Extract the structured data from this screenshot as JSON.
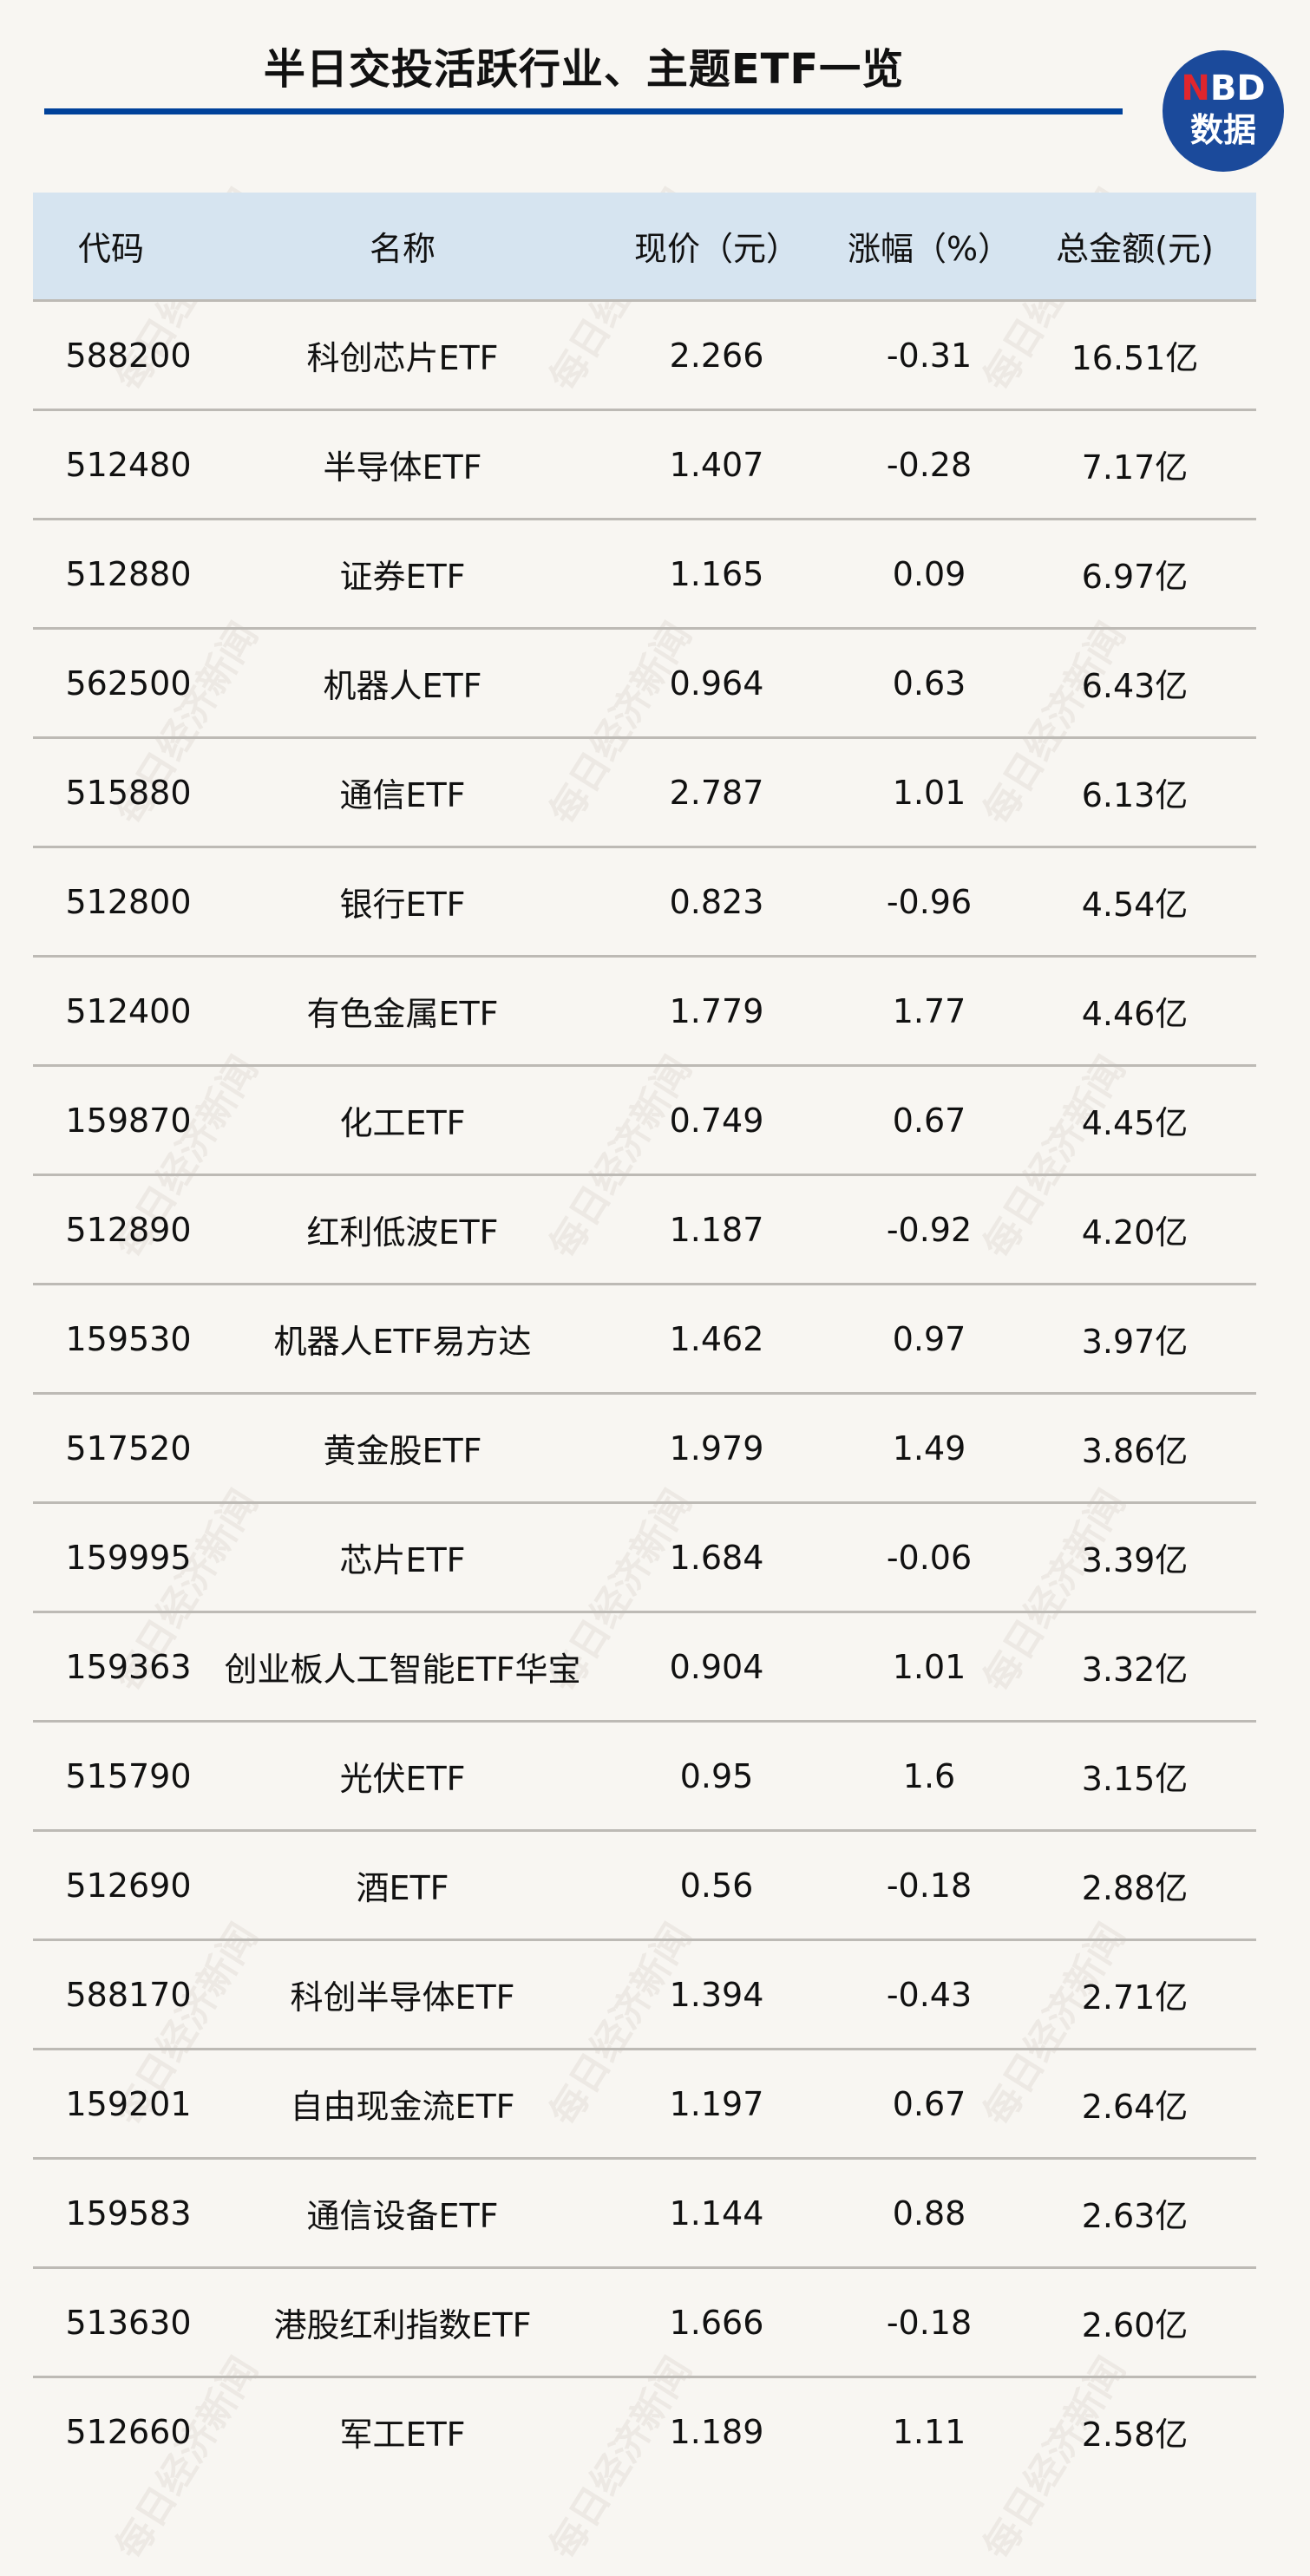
{
  "title": "半日交投活跃行业、主题ETF一览",
  "logo": {
    "line1_n": "N",
    "line1_rest": "BD",
    "line2": "数据"
  },
  "watermark": "每日经济新闻",
  "colors": {
    "accent": "#00419a",
    "header_bg": "#d6e4f0",
    "background": "#f8f6f2"
  },
  "table": {
    "headers": [
      "代码",
      "名称",
      "现价（元）",
      "涨幅（%）",
      "总金额(元)"
    ],
    "rows": [
      [
        "588200",
        "科创芯片ETF",
        "2.266",
        "-0.31",
        "16.51亿"
      ],
      [
        "512480",
        "半导体ETF",
        "1.407",
        "-0.28",
        "7.17亿"
      ],
      [
        "512880",
        "证券ETF",
        "1.165",
        "0.09",
        "6.97亿"
      ],
      [
        "562500",
        "机器人ETF",
        "0.964",
        "0.63",
        "6.43亿"
      ],
      [
        "515880",
        "通信ETF",
        "2.787",
        "1.01",
        "6.13亿"
      ],
      [
        "512800",
        "银行ETF",
        "0.823",
        "-0.96",
        "4.54亿"
      ],
      [
        "512400",
        "有色金属ETF",
        "1.779",
        "1.77",
        "4.46亿"
      ],
      [
        "159870",
        "化工ETF",
        "0.749",
        "0.67",
        "4.45亿"
      ],
      [
        "512890",
        "红利低波ETF",
        "1.187",
        "-0.92",
        "4.20亿"
      ],
      [
        "159530",
        "机器人ETF易方达",
        "1.462",
        "0.97",
        "3.97亿"
      ],
      [
        "517520",
        "黄金股ETF",
        "1.979",
        "1.49",
        "3.86亿"
      ],
      [
        "159995",
        "芯片ETF",
        "1.684",
        "-0.06",
        "3.39亿"
      ],
      [
        "159363",
        "创业板人工智能ETF华宝",
        "0.904",
        "1.01",
        "3.32亿"
      ],
      [
        "515790",
        "光伏ETF",
        "0.95",
        "1.6",
        "3.15亿"
      ],
      [
        "512690",
        "酒ETF",
        "0.56",
        "-0.18",
        "2.88亿"
      ],
      [
        "588170",
        "科创半导体ETF",
        "1.394",
        "-0.43",
        "2.71亿"
      ],
      [
        "159201",
        "自由现金流ETF",
        "1.197",
        "0.67",
        "2.64亿"
      ],
      [
        "159583",
        "通信设备ETF",
        "1.144",
        "0.88",
        "2.63亿"
      ],
      [
        "513630",
        "港股红利指数ETF",
        "1.666",
        "-0.18",
        "2.60亿"
      ],
      [
        "512660",
        "军工ETF",
        "1.189",
        "1.11",
        "2.58亿"
      ]
    ]
  }
}
